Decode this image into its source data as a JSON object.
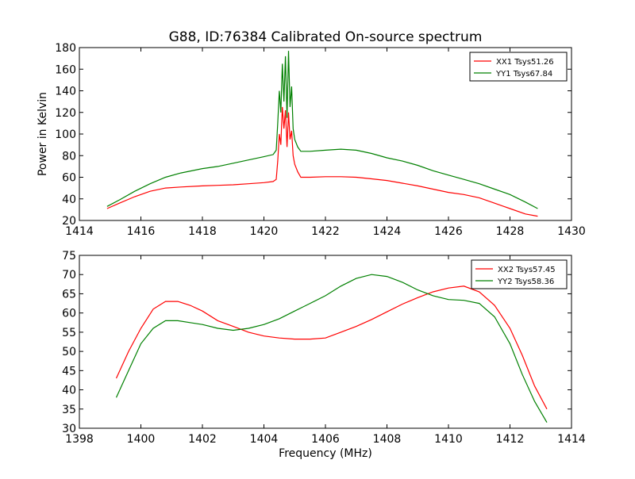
{
  "chart_data": [
    {
      "type": "line",
      "title": "G88, ID:76384 Calibrated On-source spectrum",
      "xlabel": "",
      "ylabel": "Power in Kelvin",
      "xlim": [
        1414,
        1430
      ],
      "ylim": [
        20,
        180
      ],
      "xticks": [
        1414,
        1416,
        1418,
        1420,
        1422,
        1424,
        1426,
        1428,
        1430
      ],
      "yticks": [
        20,
        40,
        60,
        80,
        100,
        120,
        140,
        160,
        180
      ],
      "grid": false,
      "legend_position": "top-right",
      "series": [
        {
          "name": "XX1 Tsys51.26",
          "color": "#ff0000",
          "x": [
            1414.9,
            1415.3,
            1415.8,
            1416.3,
            1416.8,
            1417.3,
            1418.0,
            1418.5,
            1419.0,
            1419.5,
            1420.0,
            1420.3,
            1420.4,
            1420.45,
            1420.5,
            1420.55,
            1420.6,
            1420.65,
            1420.7,
            1420.75,
            1420.8,
            1420.85,
            1420.9,
            1420.95,
            1421.0,
            1421.1,
            1421.2,
            1421.5,
            1422.0,
            1422.5,
            1423.0,
            1423.5,
            1424.0,
            1424.5,
            1425.0,
            1425.5,
            1426.0,
            1426.5,
            1427.0,
            1427.5,
            1428.0,
            1428.5,
            1428.9
          ],
          "y": [
            31,
            36,
            42,
            47,
            50,
            51,
            52,
            52.5,
            53,
            54,
            55,
            56,
            58,
            75,
            100,
            90,
            125,
            105,
            122,
            88,
            120,
            95,
            103,
            80,
            72,
            65,
            60,
            60,
            60.5,
            60.5,
            60,
            58.5,
            57,
            54.5,
            52,
            49,
            46,
            44,
            41,
            36,
            31,
            26,
            24
          ]
        },
        {
          "name": "YY1 Tsys67.84",
          "color": "#008000",
          "x": [
            1414.9,
            1415.3,
            1415.8,
            1416.3,
            1416.8,
            1417.3,
            1418.0,
            1418.5,
            1419.0,
            1419.5,
            1420.0,
            1420.3,
            1420.4,
            1420.45,
            1420.5,
            1420.55,
            1420.6,
            1420.65,
            1420.7,
            1420.75,
            1420.8,
            1420.85,
            1420.9,
            1420.95,
            1421.0,
            1421.1,
            1421.2,
            1421.5,
            1422.0,
            1422.5,
            1423.0,
            1423.5,
            1424.0,
            1424.5,
            1425.0,
            1425.5,
            1426.0,
            1426.5,
            1427.0,
            1427.5,
            1428.0,
            1428.5,
            1428.9
          ],
          "y": [
            33,
            39,
            47,
            54,
            60,
            64,
            68,
            70,
            73,
            76,
            79,
            81,
            85,
            110,
            140,
            120,
            165,
            130,
            172,
            115,
            177,
            125,
            144,
            105,
            95,
            88,
            84,
            84,
            85,
            86,
            85,
            82,
            78,
            75,
            71,
            66,
            62,
            58,
            54,
            49,
            44,
            37,
            31
          ]
        }
      ]
    },
    {
      "type": "line",
      "title": "",
      "xlabel": "Frequency (MHz)",
      "ylabel": "",
      "xlim": [
        1398,
        1414
      ],
      "ylim": [
        30,
        75
      ],
      "xticks": [
        1398,
        1400,
        1402,
        1404,
        1406,
        1408,
        1410,
        1412,
        1414
      ],
      "yticks": [
        30,
        35,
        40,
        45,
        50,
        55,
        60,
        65,
        70,
        75
      ],
      "grid": false,
      "legend_position": "top-right",
      "series": [
        {
          "name": "XX2 Tsys57.45",
          "color": "#ff0000",
          "x": [
            1399.2,
            1399.6,
            1400.0,
            1400.4,
            1400.8,
            1401.2,
            1401.6,
            1402.0,
            1402.5,
            1403.0,
            1403.5,
            1404.0,
            1404.5,
            1405.0,
            1405.5,
            1406.0,
            1406.5,
            1407.0,
            1407.5,
            1408.0,
            1408.5,
            1409.0,
            1409.5,
            1410.0,
            1410.5,
            1411.0,
            1411.5,
            1412.0,
            1412.4,
            1412.8,
            1413.2
          ],
          "y": [
            43,
            50,
            56,
            61,
            63,
            63,
            62,
            60.5,
            58,
            56.5,
            55,
            54,
            53.5,
            53.2,
            53.2,
            53.5,
            55,
            56.5,
            58.3,
            60.3,
            62.3,
            64,
            65.5,
            66.5,
            67,
            65.5,
            62,
            56,
            49,
            41,
            35
          ]
        },
        {
          "name": "YY2 Tsys58.36",
          "color": "#008000",
          "x": [
            1399.2,
            1399.6,
            1400.0,
            1400.4,
            1400.8,
            1401.2,
            1401.6,
            1402.0,
            1402.5,
            1403.0,
            1403.5,
            1404.0,
            1404.5,
            1405.0,
            1405.5,
            1406.0,
            1406.5,
            1407.0,
            1407.5,
            1408.0,
            1408.5,
            1409.0,
            1409.5,
            1410.0,
            1410.5,
            1411.0,
            1411.5,
            1412.0,
            1412.4,
            1412.8,
            1413.2
          ],
          "y": [
            38,
            45,
            52,
            56,
            58,
            58,
            57.5,
            57,
            56,
            55.5,
            56,
            57,
            58.5,
            60.5,
            62.5,
            64.5,
            67,
            69,
            70,
            69.5,
            68,
            66,
            64.5,
            63.5,
            63.3,
            62.5,
            59,
            52,
            44,
            37,
            31.5
          ]
        }
      ]
    }
  ]
}
